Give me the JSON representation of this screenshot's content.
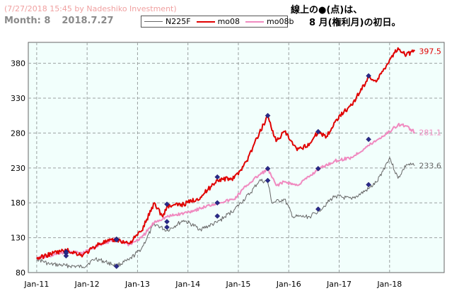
{
  "header": {
    "watermark": "(7/27/2018 15:45 by Nadeshiko Investment)",
    "month_label": "Month: 8",
    "date_label": "2018.7.27",
    "note_line1": "線上の●(点)は、",
    "note_line2": "8 月(権利月)の初日。"
  },
  "colors": {
    "n225f": "#666666",
    "mo08": "#e00000",
    "mo08b": "#f08ac0",
    "marker": "#2a2a8a",
    "plot_bg": "#f2fffc",
    "grid": "#9aa0a0"
  },
  "chart_data": {
    "type": "line",
    "title": "",
    "xlabel": "",
    "ylabel": "",
    "ylim": [
      80,
      410
    ],
    "yticks": [
      80,
      130,
      180,
      230,
      280,
      330,
      380
    ],
    "xticks": [
      "Jan-11",
      "Jan-12",
      "Jan-13",
      "Jan-14",
      "Jan-15",
      "Jan-16",
      "Jan-17",
      "Jan-18"
    ],
    "xrange": [
      "2010-11",
      "2019-02"
    ],
    "grid": true,
    "legend_position": "top",
    "series": [
      {
        "name": "N225F",
        "end_label": "233.6",
        "points": [
          [
            "2011-01",
            100
          ],
          [
            "2011-04",
            92
          ],
          [
            "2011-08",
            90
          ],
          [
            "2011-12",
            88
          ],
          [
            "2012-03",
            100
          ],
          [
            "2012-08",
            90
          ],
          [
            "2012-11",
            98
          ],
          [
            "2013-02",
            115
          ],
          [
            "2013-05",
            150
          ],
          [
            "2013-08",
            140
          ],
          [
            "2013-12",
            155
          ],
          [
            "2014-04",
            142
          ],
          [
            "2014-08",
            152
          ],
          [
            "2014-12",
            170
          ],
          [
            "2015-04",
            195
          ],
          [
            "2015-06",
            212
          ],
          [
            "2015-08",
            210
          ],
          [
            "2015-09",
            180
          ],
          [
            "2015-12",
            185
          ],
          [
            "2016-02",
            160
          ],
          [
            "2016-06",
            160
          ],
          [
            "2016-08",
            168
          ],
          [
            "2016-12",
            190
          ],
          [
            "2017-04",
            185
          ],
          [
            "2017-08",
            200
          ],
          [
            "2017-10",
            210
          ],
          [
            "2018-01",
            245
          ],
          [
            "2018-03",
            215
          ],
          [
            "2018-05",
            235
          ],
          [
            "2018-07",
            233.6
          ]
        ]
      },
      {
        "name": "mo08",
        "end_label": "397.5",
        "points": [
          [
            "2011-01",
            100
          ],
          [
            "2011-05",
            108
          ],
          [
            "2011-08",
            112
          ],
          [
            "2011-12",
            105
          ],
          [
            "2012-04",
            122
          ],
          [
            "2012-08",
            127
          ],
          [
            "2012-11",
            122
          ],
          [
            "2013-02",
            140
          ],
          [
            "2013-05",
            180
          ],
          [
            "2013-07",
            160
          ],
          [
            "2013-08",
            175
          ],
          [
            "2013-12",
            178
          ],
          [
            "2014-04",
            188
          ],
          [
            "2014-08",
            213
          ],
          [
            "2014-12",
            215
          ],
          [
            "2015-03",
            240
          ],
          [
            "2015-06",
            280
          ],
          [
            "2015-08",
            305
          ],
          [
            "2015-10",
            268
          ],
          [
            "2015-12",
            282
          ],
          [
            "2016-03",
            255
          ],
          [
            "2016-06",
            265
          ],
          [
            "2016-08",
            282
          ],
          [
            "2016-10",
            275
          ],
          [
            "2017-01",
            305
          ],
          [
            "2017-04",
            320
          ],
          [
            "2017-08",
            360
          ],
          [
            "2017-10",
            355
          ],
          [
            "2018-01",
            385
          ],
          [
            "2018-03",
            402
          ],
          [
            "2018-05",
            392
          ],
          [
            "2018-07",
            397.5
          ]
        ]
      },
      {
        "name": "mo08b",
        "end_label": "281.1",
        "points": [
          [
            "2011-01",
            100
          ],
          [
            "2011-05",
            105
          ],
          [
            "2011-08",
            110
          ],
          [
            "2011-12",
            108
          ],
          [
            "2012-04",
            120
          ],
          [
            "2012-08",
            128
          ],
          [
            "2012-11",
            120
          ],
          [
            "2013-02",
            130
          ],
          [
            "2013-05",
            152
          ],
          [
            "2013-08",
            160
          ],
          [
            "2013-12",
            165
          ],
          [
            "2014-04",
            172
          ],
          [
            "2014-08",
            180
          ],
          [
            "2014-12",
            185
          ],
          [
            "2015-03",
            205
          ],
          [
            "2015-06",
            220
          ],
          [
            "2015-08",
            228
          ],
          [
            "2015-10",
            205
          ],
          [
            "2015-12",
            210
          ],
          [
            "2016-03",
            205
          ],
          [
            "2016-06",
            218
          ],
          [
            "2016-08",
            228
          ],
          [
            "2016-12",
            240
          ],
          [
            "2017-04",
            245
          ],
          [
            "2017-08",
            262
          ],
          [
            "2017-10",
            270
          ],
          [
            "2018-01",
            282
          ],
          [
            "2018-03",
            292
          ],
          [
            "2018-05",
            290
          ],
          [
            "2018-07",
            281.1
          ]
        ]
      }
    ],
    "markers": [
      {
        "series": "mo08",
        "points": [
          [
            "2011-08",
            110
          ],
          [
            "2012-08",
            128
          ],
          [
            "2013-08",
            178
          ],
          [
            "2014-08",
            217
          ],
          [
            "2015-08",
            305
          ],
          [
            "2016-08",
            282
          ],
          [
            "2017-08",
            362
          ]
        ]
      },
      {
        "series": "mo08b",
        "points": [
          [
            "2011-08",
            108
          ],
          [
            "2012-08",
            127
          ],
          [
            "2013-08",
            153
          ],
          [
            "2014-08",
            180
          ],
          [
            "2015-08",
            229
          ],
          [
            "2016-08",
            229
          ],
          [
            "2017-08",
            271
          ]
        ]
      },
      {
        "series": "N225F",
        "points": [
          [
            "2011-08",
            104
          ],
          [
            "2012-08",
            89
          ],
          [
            "2013-08",
            145
          ],
          [
            "2014-08",
            161
          ],
          [
            "2015-08",
            212
          ],
          [
            "2016-08",
            171
          ],
          [
            "2017-08",
            206
          ]
        ]
      }
    ]
  }
}
